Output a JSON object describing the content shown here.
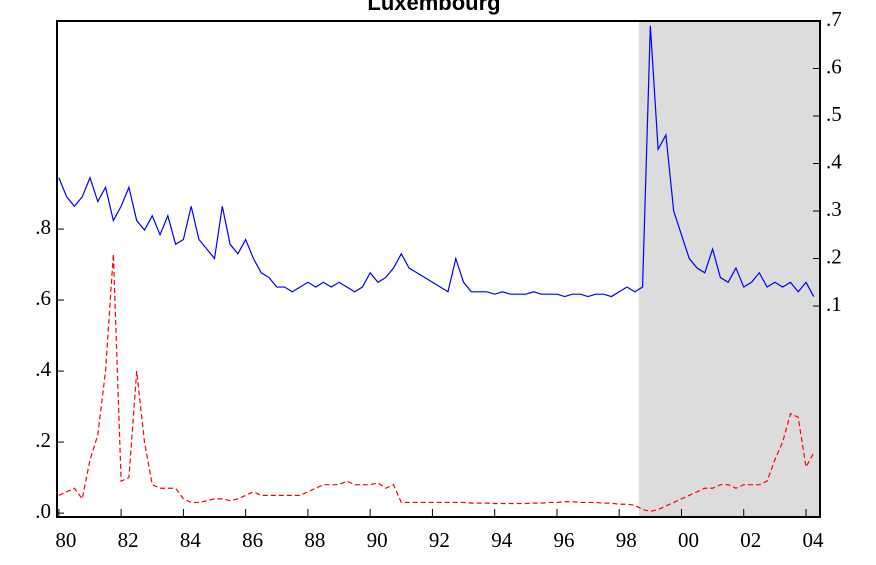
{
  "chart_data": {
    "type": "line",
    "title": "Luxembourg",
    "x": [
      1980,
      1980.25,
      1980.5,
      1980.75,
      1981,
      1981.25,
      1981.5,
      1981.75,
      1982,
      1982.25,
      1982.5,
      1982.75,
      1983,
      1983.25,
      1983.5,
      1983.75,
      1984,
      1984.25,
      1984.5,
      1984.75,
      1985,
      1985.25,
      1985.5,
      1985.75,
      1986,
      1986.25,
      1986.5,
      1986.75,
      1987,
      1987.25,
      1987.5,
      1987.75,
      1988,
      1988.25,
      1988.5,
      1988.75,
      1989,
      1989.25,
      1989.5,
      1989.75,
      1990,
      1990.25,
      1990.5,
      1990.75,
      1991,
      1991.25,
      1991.5,
      1991.75,
      1992,
      1992.25,
      1992.5,
      1992.75,
      1993,
      1993.25,
      1993.5,
      1993.75,
      1994,
      1994.25,
      1994.5,
      1994.75,
      1995,
      1995.25,
      1995.5,
      1995.75,
      1996,
      1996.25,
      1996.5,
      1996.75,
      1997,
      1997.25,
      1997.5,
      1997.75,
      1998,
      1998.25,
      1998.5,
      1998.75,
      1999,
      1999.25,
      1999.5,
      1999.75,
      2000,
      2000.25,
      2000.5,
      2000.75,
      2001,
      2001.25,
      2001.5,
      2001.75,
      2002,
      2002.25,
      2002.5,
      2002.75,
      2003,
      2003.25,
      2003.5,
      2003.75,
      2004,
      2004.25
    ],
    "series": [
      {
        "color": "#0000ff",
        "style": "solid",
        "axis": "y2",
        "values": [
          0.37,
          0.33,
          0.31,
          0.33,
          0.37,
          0.32,
          0.35,
          0.28,
          0.31,
          0.35,
          0.28,
          0.26,
          0.29,
          0.25,
          0.29,
          0.23,
          0.24,
          0.31,
          0.24,
          0.22,
          0.2,
          0.31,
          0.23,
          0.21,
          0.24,
          0.2,
          0.17,
          0.16,
          0.14,
          0.14,
          0.13,
          0.14,
          0.15,
          0.14,
          0.15,
          0.14,
          0.15,
          0.14,
          0.13,
          0.14,
          0.17,
          0.15,
          0.16,
          0.18,
          0.21,
          0.18,
          0.17,
          0.16,
          0.15,
          0.14,
          0.13,
          0.2,
          0.15,
          0.13,
          0.13,
          0.13,
          0.125,
          0.13,
          0.125,
          0.125,
          0.125,
          0.13,
          0.125,
          0.125,
          0.125,
          0.12,
          0.125,
          0.125,
          0.12,
          0.125,
          0.125,
          0.12,
          0.13,
          0.14,
          0.13,
          0.14,
          0.69,
          0.43,
          0.46,
          0.3,
          0.25,
          0.2,
          0.18,
          0.17,
          0.22,
          0.16,
          0.15,
          0.18,
          0.14,
          0.15,
          0.17,
          0.14,
          0.15,
          0.14,
          0.15,
          0.13,
          0.15,
          0.12
        ]
      },
      {
        "color": "#ff0000",
        "style": "dashed",
        "axis": "y",
        "values": [
          0.05,
          0.06,
          0.07,
          0.04,
          0.15,
          0.22,
          0.4,
          0.73,
          0.09,
          0.1,
          0.4,
          0.2,
          0.08,
          0.07,
          0.07,
          0.07,
          0.04,
          0.03,
          0.03,
          0.035,
          0.04,
          0.04,
          0.035,
          0.04,
          0.05,
          0.06,
          0.05,
          0.05,
          0.05,
          0.05,
          0.05,
          0.05,
          0.06,
          0.07,
          0.08,
          0.08,
          0.08,
          0.09,
          0.08,
          0.08,
          0.08,
          0.085,
          0.07,
          0.08,
          0.03,
          0.03,
          0.03,
          0.03,
          0.03,
          0.03,
          0.03,
          0.03,
          0.03,
          0.028,
          0.028,
          0.028,
          0.027,
          0.027,
          0.027,
          0.027,
          0.027,
          0.028,
          0.028,
          0.03,
          0.03,
          0.032,
          0.032,
          0.03,
          0.03,
          0.03,
          0.028,
          0.028,
          0.025,
          0.025,
          0.022,
          0.01,
          0.005,
          0.01,
          0.02,
          0.03,
          0.04,
          0.05,
          0.06,
          0.07,
          0.07,
          0.08,
          0.08,
          0.07,
          0.08,
          0.08,
          0.08,
          0.09,
          0.15,
          0.2,
          0.28,
          0.27,
          0.13,
          0.17
        ]
      }
    ],
    "xlim": [
      1979.94,
      2004.45
    ],
    "xticks": [
      {
        "value": 1980,
        "label": "80"
      },
      {
        "value": 1982,
        "label": "82"
      },
      {
        "value": 1984,
        "label": "84"
      },
      {
        "value": 1986,
        "label": "86"
      },
      {
        "value": 1988,
        "label": "88"
      },
      {
        "value": 1990,
        "label": "90"
      },
      {
        "value": 1992,
        "label": "92"
      },
      {
        "value": 1994,
        "label": "94"
      },
      {
        "value": 1996,
        "label": "96"
      },
      {
        "value": 1998,
        "label": "98"
      },
      {
        "value": 2000,
        "label": "00"
      },
      {
        "value": 2002,
        "label": "02"
      },
      {
        "value": 2004,
        "label": "04"
      }
    ],
    "ylim": [
      -0.011,
      1.386
    ],
    "yticks": [
      {
        "value": 0,
        "label": ".0"
      },
      {
        "value": 0.2,
        "label": ".2"
      },
      {
        "value": 0.4,
        "label": ".4"
      },
      {
        "value": 0.6,
        "label": ".6"
      },
      {
        "value": 0.8,
        "label": ".8"
      }
    ],
    "y2lim": [
      -0.344,
      0.7
    ],
    "y2ticks": [
      {
        "value": 0.1,
        "label": ".1"
      },
      {
        "value": 0.2,
        "label": ".2"
      },
      {
        "value": 0.3,
        "label": ".3"
      },
      {
        "value": 0.4,
        "label": ".4"
      },
      {
        "value": 0.5,
        "label": ".5"
      },
      {
        "value": 0.6,
        "label": ".6"
      },
      {
        "value": 0.7,
        "label": ".7"
      }
    ],
    "shaded_x": [
      1998.63,
      2004.45
    ],
    "shade_color": "#dcdcdc"
  }
}
